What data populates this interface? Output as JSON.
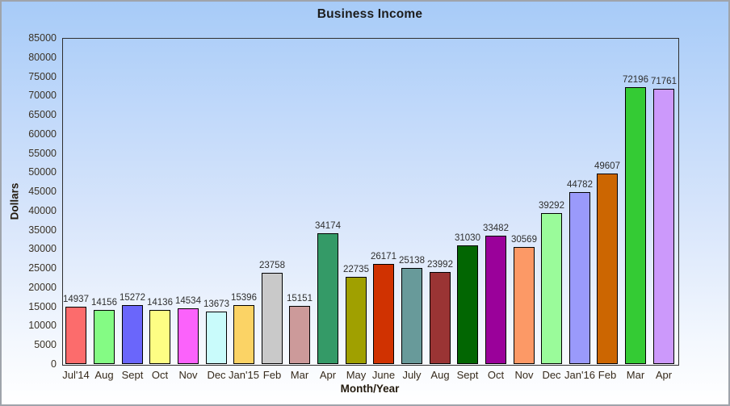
{
  "chart_data": {
    "type": "bar",
    "title": "Business Income",
    "xlabel": "Month/Year",
    "ylabel": "Dollars",
    "ylim": [
      0,
      85000
    ],
    "ytick_step": 5000,
    "grid": false,
    "legend": "none",
    "value_labels_shown": true,
    "categories": [
      "Jul'14",
      "Aug",
      "Sept",
      "Oct",
      "Nov",
      "Dec",
      "Jan'15",
      "Feb",
      "Mar",
      "Apr",
      "May",
      "June",
      "July",
      "Aug",
      "Sept",
      "Oct",
      "Nov",
      "Dec",
      "Jan'16",
      "Feb",
      "Mar",
      "Apr"
    ],
    "values": [
      14937,
      14156,
      15272,
      14136,
      14534,
      13673,
      15396,
      23758,
      15151,
      34174,
      22735,
      26171,
      25138,
      23992,
      31030,
      33482,
      30569,
      39292,
      44782,
      49607,
      72196,
      71761
    ],
    "bar_colors": [
      "#fc6c6c",
      "#84fb84",
      "#6a66fb",
      "#fdfd84",
      "#fb62fb",
      "#c9fbfb",
      "#fbd365",
      "#c9c9c9",
      "#cc9a9a",
      "#349a67",
      "#a0a000",
      "#d03201",
      "#689a9a",
      "#9a3434",
      "#026602",
      "#9a019a",
      "#fc9966",
      "#9afb9a",
      "#9a9afb",
      "#cc6601",
      "#34cb34",
      "#cc99fb"
    ],
    "colors": {
      "background_top": "#a7cbf8",
      "background_bottom": "#ffffff",
      "plot_border": "#2f2f2f",
      "bar_border": "#000000",
      "tick_text": "#3a3226",
      "title_text": "#1c1c1c"
    }
  }
}
